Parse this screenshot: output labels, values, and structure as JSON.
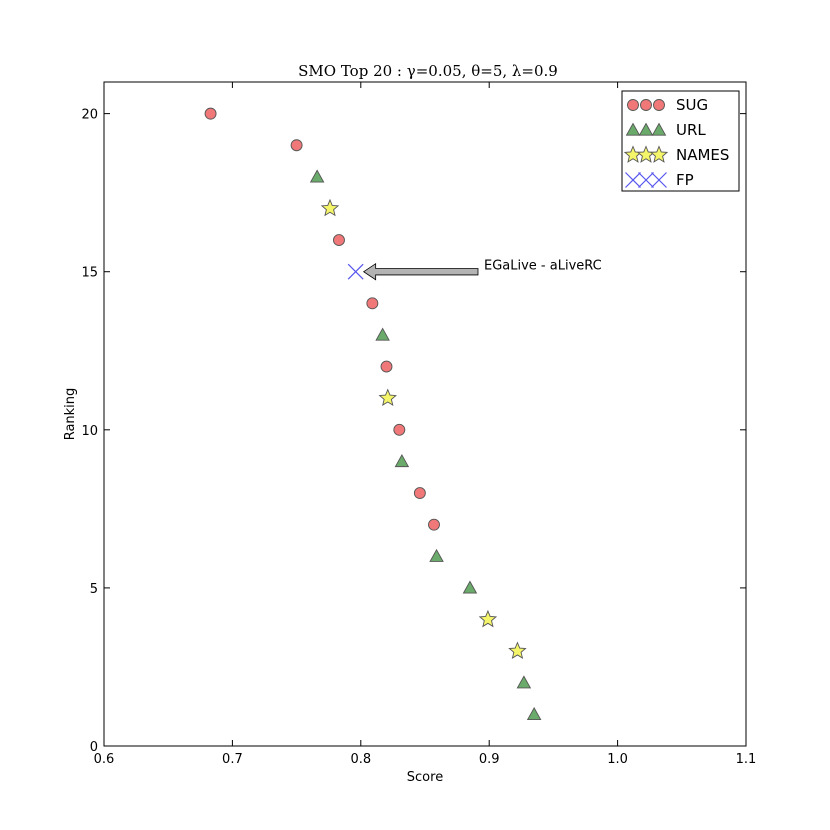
{
  "chart_data": {
    "type": "scatter",
    "title": "SMO Top 20 : γ=0.05, θ=5, λ=0.9",
    "xlabel": "Score",
    "ylabel": "Ranking",
    "xlim": [
      0.6,
      1.1
    ],
    "ylim": [
      0,
      21
    ],
    "xticks": [
      "0.6",
      "0.7",
      "0.8",
      "0.9",
      "1.0",
      "1.1"
    ],
    "yticks": [
      "0",
      "5",
      "10",
      "15",
      "20"
    ],
    "xtick_values": [
      0.6,
      0.7,
      0.8,
      0.9,
      1.0,
      1.1
    ],
    "ytick_values": [
      0,
      5,
      10,
      15,
      20
    ],
    "grid": false,
    "legend_position": "top-right",
    "series": [
      {
        "name": "SUG",
        "marker": "circle",
        "color": "#f07878",
        "points": [
          {
            "x": 0.683,
            "y": 20
          },
          {
            "x": 0.75,
            "y": 19
          },
          {
            "x": 0.783,
            "y": 16
          },
          {
            "x": 0.809,
            "y": 14
          },
          {
            "x": 0.82,
            "y": 12
          },
          {
            "x": 0.83,
            "y": 10
          },
          {
            "x": 0.846,
            "y": 8
          },
          {
            "x": 0.857,
            "y": 7
          }
        ]
      },
      {
        "name": "URL",
        "marker": "triangle",
        "color": "#6aaa6a",
        "points": [
          {
            "x": 0.766,
            "y": 18
          },
          {
            "x": 0.817,
            "y": 13
          },
          {
            "x": 0.832,
            "y": 9
          },
          {
            "x": 0.859,
            "y": 6
          },
          {
            "x": 0.885,
            "y": 5
          },
          {
            "x": 0.927,
            "y": 2
          },
          {
            "x": 0.935,
            "y": 1
          }
        ]
      },
      {
        "name": "NAMES",
        "marker": "star",
        "color": "#f5f56a",
        "points": [
          {
            "x": 0.776,
            "y": 17
          },
          {
            "x": 0.821,
            "y": 11
          },
          {
            "x": 0.899,
            "y": 4
          },
          {
            "x": 0.922,
            "y": 3
          }
        ]
      },
      {
        "name": "FP",
        "marker": "x",
        "color": "#5555ee",
        "points": [
          {
            "x": 0.796,
            "y": 15
          }
        ]
      }
    ],
    "annotation": {
      "text": "EGaLive - aLiveRC",
      "target": {
        "x": 0.796,
        "y": 15
      }
    }
  }
}
